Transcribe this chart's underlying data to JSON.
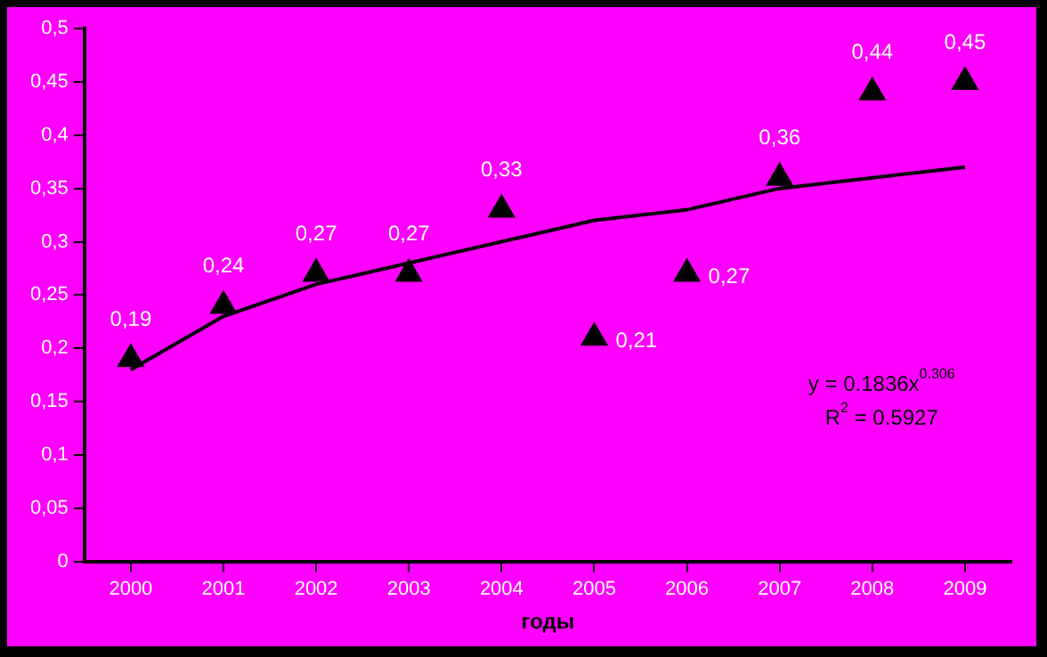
{
  "chart_data": {
    "type": "scatter",
    "xlabel": "годы",
    "categories": [
      "2000",
      "2001",
      "2002",
      "2003",
      "2004",
      "2005",
      "2006",
      "2007",
      "2008",
      "2009"
    ],
    "series": [
      {
        "color": "#000000",
        "marker": "triangle",
        "values": [
          0.19,
          0.24,
          0.27,
          0.27,
          0.33,
          0.21,
          0.27,
          0.36,
          0.44,
          0.45
        ],
        "value_labels": [
          "0,19",
          "0,24",
          "0,27",
          "0,27",
          "0,33",
          "0,21",
          "0,27",
          "0,36",
          "0,44",
          "0,45"
        ]
      },
      {
        "type": "line",
        "color": "#000000",
        "marker": "none",
        "values": [
          0.18,
          0.23,
          0.26,
          0.28,
          0.3,
          0.32,
          0.33,
          0.35,
          0.36,
          0.37
        ]
      }
    ],
    "ylim": [
      0,
      0.5
    ],
    "yticks": [
      {
        "value": 0,
        "label": "0"
      },
      {
        "value": 0.05,
        "label": "0,05"
      },
      {
        "value": 0.1,
        "label": "0,1"
      },
      {
        "value": 0.15,
        "label": "0,15"
      },
      {
        "value": 0.2,
        "label": "0,2"
      },
      {
        "value": 0.25,
        "label": "0,25"
      },
      {
        "value": 0.3,
        "label": "0,3"
      },
      {
        "value": 0.35,
        "label": "0,35"
      },
      {
        "value": 0.4,
        "label": "0,4"
      },
      {
        "value": 0.45,
        "label": "0,45"
      },
      {
        "value": 0.5,
        "label": "0,5"
      }
    ],
    "annotations": [
      "y = 0.1836x$^{0.306}$",
      "R$^{2}$ = 0.5927"
    ],
    "grid": false,
    "legend": false
  }
}
